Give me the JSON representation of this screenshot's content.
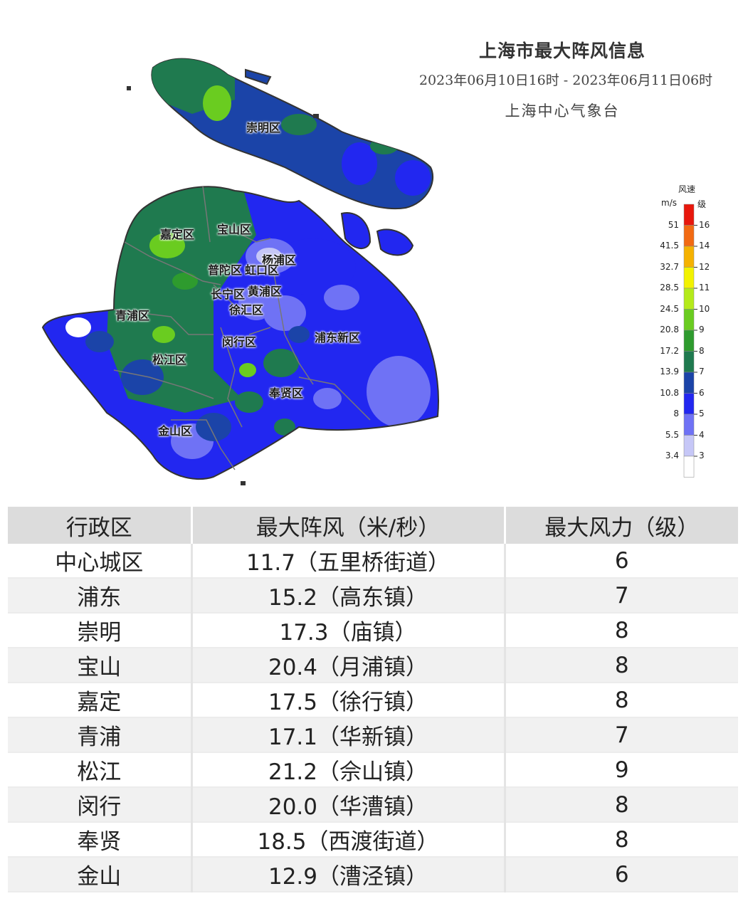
{
  "map": {
    "title": "上海市最大阵风信息",
    "period": "2023年06月10日16时 - 2023年06月11日06时",
    "source": "上海中心气象台",
    "districts": [
      {
        "id": "chongming",
        "label": "崇明区"
      },
      {
        "id": "baoshan",
        "label": "宝山区"
      },
      {
        "id": "jiading",
        "label": "嘉定区"
      },
      {
        "id": "yangpu",
        "label": "杨浦区"
      },
      {
        "id": "putuo",
        "label": "普陀区"
      },
      {
        "id": "hongkou",
        "label": "虹口区"
      },
      {
        "id": "changning",
        "label": "长宁区"
      },
      {
        "id": "huangpu",
        "label": "黄浦区"
      },
      {
        "id": "xuhui",
        "label": "徐汇区"
      },
      {
        "id": "qingpu",
        "label": "青浦区"
      },
      {
        "id": "pudong",
        "label": "浦东新区"
      },
      {
        "id": "minhang",
        "label": "闵行区"
      },
      {
        "id": "songjiang",
        "label": "松江区"
      },
      {
        "id": "fengxian",
        "label": "奉贤区"
      },
      {
        "id": "jinshan",
        "label": "金山区"
      }
    ]
  },
  "legend": {
    "title": "风速",
    "unit_speed": "m/s",
    "unit_level": "级",
    "stops": [
      {
        "speed": "51",
        "level": "16",
        "color": "#e8170c"
      },
      {
        "speed": "41.5",
        "level": "14",
        "color": "#f26a12"
      },
      {
        "speed": "32.7",
        "level": "12",
        "color": "#f5b200"
      },
      {
        "speed": "28.5",
        "level": "11",
        "color": "#f2f200"
      },
      {
        "speed": "24.5",
        "level": "10",
        "color": "#b4ea1a"
      },
      {
        "speed": "20.8",
        "level": "9",
        "color": "#6acc20"
      },
      {
        "speed": "17.2",
        "level": "8",
        "color": "#2e9b2e"
      },
      {
        "speed": "13.9",
        "level": "7",
        "color": "#1f7a4f"
      },
      {
        "speed": "10.8",
        "level": "6",
        "color": "#1b44a8"
      },
      {
        "speed": "8",
        "level": "5",
        "color": "#2227f0"
      },
      {
        "speed": "5.5",
        "level": "4",
        "color": "#6f72f5"
      },
      {
        "speed": "3.4",
        "level": "3",
        "color": "#c6c7f7"
      }
    ],
    "bottom_color": "#ffffff"
  },
  "table": {
    "headers": [
      "行政区",
      "最大阵风（米/秒）",
      "最大风力（级）"
    ],
    "rows": [
      {
        "district": "中心城区",
        "gust": "11.7（五里桥街道）",
        "level": "6"
      },
      {
        "district": "浦东",
        "gust": "15.2（高东镇）",
        "level": "7"
      },
      {
        "district": "崇明",
        "gust": "17.3（庙镇）",
        "level": "8"
      },
      {
        "district": "宝山",
        "gust": "20.4（月浦镇）",
        "level": "8"
      },
      {
        "district": "嘉定",
        "gust": "17.5（徐行镇）",
        "level": "8"
      },
      {
        "district": "青浦",
        "gust": "17.1（华新镇）",
        "level": "7"
      },
      {
        "district": "松江",
        "gust": "21.2（佘山镇）",
        "level": "9"
      },
      {
        "district": "闵行",
        "gust": "20.0（华漕镇）",
        "level": "8"
      },
      {
        "district": "奉贤",
        "gust": "18.5（西渡街道）",
        "level": "8"
      },
      {
        "district": "金山",
        "gust": "12.9（漕泾镇）",
        "level": "6"
      }
    ]
  }
}
